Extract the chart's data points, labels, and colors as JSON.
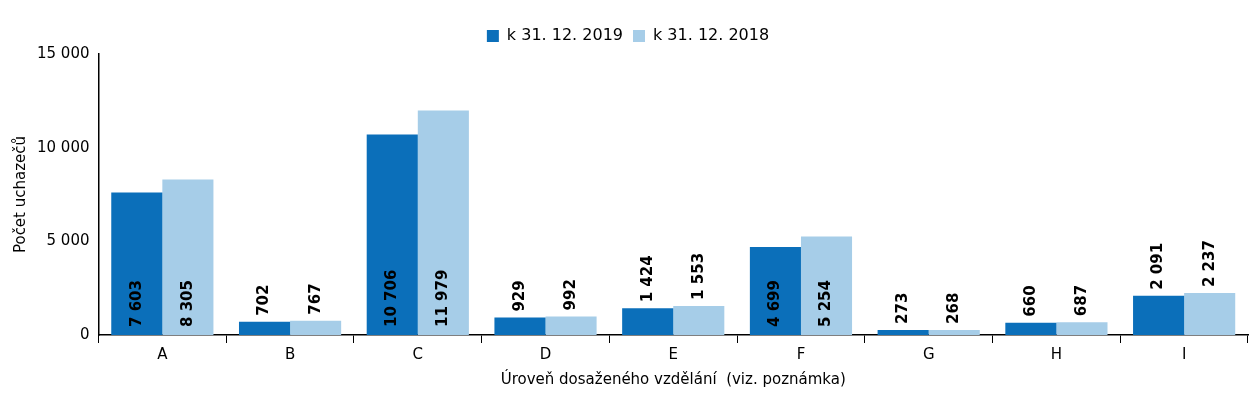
{
  "chart_data": {
    "type": "bar",
    "xlabel": "Úroveň dosaženého vzdělání  (viz. poznámka)",
    "ylabel": "Počet uchazečů",
    "categories": [
      "A",
      "B",
      "C",
      "D",
      "E",
      "F",
      "G",
      "H",
      "I"
    ],
    "series": [
      {
        "name": "k 31. 12. 2019",
        "color": "#0b6fba",
        "values": [
          7603,
          702,
          10706,
          929,
          1424,
          4699,
          273,
          660,
          2091
        ],
        "value_labels": [
          "7 603",
          "702",
          "10 706",
          "929",
          "1 424",
          "4 699",
          "273",
          "660",
          "2 091"
        ]
      },
      {
        "name": "k 31. 12. 2018",
        "color": "#a6cde8",
        "values": [
          8305,
          767,
          11979,
          992,
          1553,
          5254,
          268,
          687,
          2237
        ],
        "value_labels": [
          "8 305",
          "767",
          "11 979",
          "992",
          "1 553",
          "5 254",
          "268",
          "687",
          "2 237"
        ]
      }
    ],
    "ylim": [
      0,
      15000
    ],
    "yticks": [
      {
        "value": 0,
        "label": "0"
      },
      {
        "value": 5000,
        "label": "5 000"
      },
      {
        "value": 10000,
        "label": "10 000"
      },
      {
        "value": 15000,
        "label": "15 000"
      }
    ],
    "grid": false,
    "legend": "top"
  }
}
